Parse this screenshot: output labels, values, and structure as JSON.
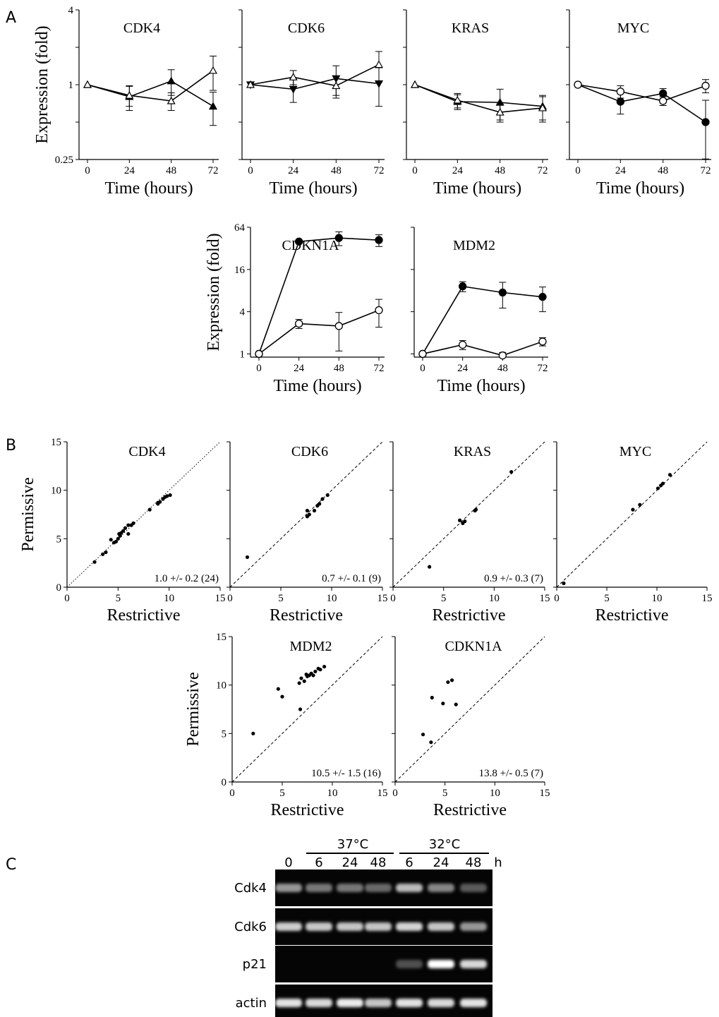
{
  "panel_labels": {
    "a": "A",
    "b": "B",
    "c": "C"
  },
  "legend_note": "",
  "chart_data": [
    {
      "type": "line",
      "panel": "A",
      "title": "CDK4",
      "xlabel": "Time (hours)",
      "ylabel": "Expression (fold)",
      "y_scale": "log2",
      "ylim": [
        0.25,
        4
      ],
      "y_ticklabels": [
        "4",
        "1",
        "0.25"
      ],
      "x": [
        0,
        24,
        48,
        72
      ],
      "series": [
        {
          "marker": "filled-triangle",
          "values": [
            1.0,
            0.8,
            1.07,
            0.67
          ],
          "err": [
            0,
            0.18,
            0.25,
            0.2
          ]
        },
        {
          "marker": "open-triangle",
          "values": [
            1.0,
            0.82,
            0.74,
            1.3
          ],
          "err": [
            0,
            0.15,
            0.12,
            0.4
          ]
        }
      ]
    },
    {
      "type": "line",
      "panel": "A",
      "title": "CDK6",
      "xlabel": "Time (hours)",
      "ylabel": "",
      "y_scale": "log2",
      "ylim": [
        0.25,
        4
      ],
      "y_ticklabels": [],
      "x": [
        0,
        24,
        48,
        72
      ],
      "series": [
        {
          "marker": "filled-inverted-triangle",
          "values": [
            1.0,
            0.92,
            1.12,
            1.02
          ],
          "err": [
            0,
            0.2,
            0.3,
            0.35
          ]
        },
        {
          "marker": "open-triangle",
          "values": [
            1.0,
            1.15,
            0.98,
            1.45
          ],
          "err": [
            0,
            0.15,
            0.2,
            0.4
          ]
        }
      ]
    },
    {
      "type": "line",
      "panel": "A",
      "title": "KRAS",
      "xlabel": "Time (hours)",
      "ylabel": "",
      "y_scale": "log2",
      "ylim": [
        0.25,
        4
      ],
      "y_ticklabels": [],
      "x": [
        0,
        24,
        48,
        72
      ],
      "series": [
        {
          "marker": "filled-triangle",
          "values": [
            1.0,
            0.73,
            0.72,
            0.67
          ],
          "err": [
            0,
            0.1,
            0.2,
            0.15
          ]
        },
        {
          "marker": "open-triangle",
          "values": [
            1.0,
            0.75,
            0.6,
            0.65
          ],
          "err": [
            0,
            0.1,
            0.1,
            0.15
          ]
        }
      ]
    },
    {
      "type": "line",
      "panel": "A",
      "title": "MYC",
      "xlabel": "Time (hours)",
      "ylabel": "",
      "y_scale": "log2",
      "ylim": [
        0.25,
        4
      ],
      "y_ticklabels": [],
      "x": [
        0,
        24,
        48,
        72
      ],
      "series": [
        {
          "marker": "filled-circle",
          "values": [
            1.0,
            0.73,
            0.85,
            0.5
          ],
          "err": [
            0,
            0.15,
            0.08,
            0.25
          ]
        },
        {
          "marker": "open-circle",
          "values": [
            1.0,
            0.88,
            0.74,
            0.98
          ],
          "err": [
            0,
            0.1,
            0.06,
            0.12
          ]
        }
      ]
    },
    {
      "type": "line",
      "panel": "A",
      "title": "CDKN1A",
      "xlabel": "Time (hours)",
      "ylabel": "Expression (fold)",
      "y_scale": "log2",
      "ylim": [
        0.9,
        64
      ],
      "y_ticks": [
        1,
        4,
        16,
        64
      ],
      "y_ticklabels": [
        "1",
        "4",
        "16",
        "64"
      ],
      "x": [
        0,
        24,
        48,
        72
      ],
      "series": [
        {
          "marker": "filled-circle",
          "values": [
            1,
            40,
            45,
            42
          ],
          "err": [
            0,
            0,
            10,
            8
          ]
        },
        {
          "marker": "open-circle",
          "values": [
            1,
            2.7,
            2.5,
            4.2
          ],
          "err": [
            0,
            0.4,
            1.4,
            1.8
          ]
        }
      ]
    },
    {
      "type": "line",
      "panel": "A",
      "title": "MDM2",
      "xlabel": "Time (hours)",
      "ylabel": "",
      "y_scale": "log2",
      "ylim": [
        0.9,
        64
      ],
      "y_ticks": [
        1,
        4,
        16,
        64
      ],
      "y_ticklabels": [],
      "x": [
        0,
        24,
        48,
        72
      ],
      "series": [
        {
          "marker": "filled-circle",
          "values": [
            1,
            9.2,
            7.5,
            6.5
          ],
          "err": [
            0,
            1.5,
            3,
            2.5
          ]
        },
        {
          "marker": "open-circle",
          "values": [
            1,
            1.35,
            0.95,
            1.5
          ],
          "err": [
            0,
            0.2,
            0.1,
            0.2
          ]
        }
      ]
    },
    {
      "type": "scatter",
      "panel": "B",
      "title": "CDK4",
      "xlabel": "Restrictive",
      "ylabel": "Permissive",
      "xlim": [
        0,
        15
      ],
      "ylim": [
        0,
        15
      ],
      "ticks": [
        0,
        5,
        10,
        15
      ],
      "show_y_ticks": true,
      "diag_style": "dotted",
      "annotation": "1.0 +/- 0.2 (24)",
      "points": [
        [
          2.7,
          2.6
        ],
        [
          3.5,
          3.4
        ],
        [
          3.8,
          3.6
        ],
        [
          4.3,
          4.9
        ],
        [
          4.6,
          4.6
        ],
        [
          4.8,
          4.7
        ],
        [
          5.0,
          5.0
        ],
        [
          5.2,
          5.3
        ],
        [
          5.3,
          5.6
        ],
        [
          5.5,
          5.8
        ],
        [
          5.7,
          6.1
        ],
        [
          6.0,
          6.4
        ],
        [
          6.3,
          6.4
        ],
        [
          6.5,
          6.6
        ],
        [
          6.0,
          5.5
        ],
        [
          5.1,
          5.5
        ],
        [
          8.1,
          8.0
        ],
        [
          8.9,
          8.7
        ],
        [
          9.1,
          8.8
        ],
        [
          9.4,
          9.1
        ],
        [
          9.6,
          9.3
        ],
        [
          9.8,
          9.4
        ],
        [
          10.1,
          9.5
        ],
        [
          8.9,
          8.6
        ]
      ]
    },
    {
      "type": "scatter",
      "panel": "B",
      "title": "CDK6",
      "xlabel": "Restrictive",
      "ylabel": "",
      "xlim": [
        0,
        15
      ],
      "ylim": [
        0,
        15
      ],
      "ticks": [
        0,
        5,
        10,
        15
      ],
      "show_y_ticks": false,
      "diag_style": "dashed",
      "annotation": "0.7 +/- 0.1 (9)",
      "points": [
        [
          1.7,
          3.1
        ],
        [
          7.6,
          7.3
        ],
        [
          7.8,
          7.5
        ],
        [
          7.6,
          7.9
        ],
        [
          8.3,
          7.9
        ],
        [
          8.6,
          8.4
        ],
        [
          8.8,
          8.6
        ],
        [
          9.1,
          9.1
        ],
        [
          9.6,
          9.5
        ]
      ]
    },
    {
      "type": "scatter",
      "panel": "B",
      "title": "KRAS",
      "xlabel": "Restrictive",
      "ylabel": "",
      "xlim": [
        0,
        15
      ],
      "ylim": [
        0,
        15
      ],
      "ticks": [
        0,
        5,
        10,
        15
      ],
      "show_y_ticks": false,
      "diag_style": "dashed",
      "annotation": "0.9 +/- 0.3 (7)",
      "points": [
        [
          3.6,
          2.1
        ],
        [
          6.6,
          6.9
        ],
        [
          6.9,
          6.6
        ],
        [
          7.1,
          6.8
        ],
        [
          8.1,
          7.9
        ],
        [
          8.2,
          8.0
        ],
        [
          11.7,
          11.9
        ]
      ]
    },
    {
      "type": "scatter",
      "panel": "B",
      "title": "MYC",
      "xlabel": "Restrictive",
      "ylabel": "",
      "xlim": [
        0,
        15
      ],
      "ylim": [
        0,
        15
      ],
      "ticks": [
        0,
        5,
        10,
        15
      ],
      "show_y_ticks": false,
      "diag_style": "dashed",
      "annotation": "",
      "points": [
        [
          0.7,
          0.4
        ],
        [
          7.6,
          8.0
        ],
        [
          8.3,
          8.5
        ],
        [
          10.1,
          10.2
        ],
        [
          10.4,
          10.5
        ],
        [
          10.6,
          10.7
        ],
        [
          11.3,
          11.6
        ]
      ]
    },
    {
      "type": "scatter",
      "panel": "B",
      "title": "MDM2",
      "xlabel": "Restrictive",
      "ylabel": "Permissive",
      "xlim": [
        0,
        15
      ],
      "ylim": [
        0,
        15
      ],
      "ticks": [
        0,
        5,
        10,
        15
      ],
      "show_y_ticks": true,
      "diag_style": "dashed",
      "annotation": "10.5 +/- 1.5 (16)",
      "points": [
        [
          2.1,
          5.0
        ],
        [
          4.6,
          9.6
        ],
        [
          5.0,
          8.8
        ],
        [
          6.8,
          7.5
        ],
        [
          6.9,
          10.7
        ],
        [
          6.7,
          10.2
        ],
        [
          7.2,
          10.4
        ],
        [
          7.5,
          10.9
        ],
        [
          7.7,
          11.0
        ],
        [
          7.9,
          11.2
        ],
        [
          8.1,
          11.0
        ],
        [
          8.3,
          11.4
        ],
        [
          8.6,
          11.7
        ],
        [
          8.8,
          11.6
        ],
        [
          9.2,
          11.9
        ],
        [
          7.4,
          11.1
        ]
      ]
    },
    {
      "type": "scatter",
      "panel": "B",
      "title": "CDKN1A",
      "xlabel": "Restrictive",
      "ylabel": "",
      "xlim": [
        0,
        15
      ],
      "ylim": [
        0,
        15
      ],
      "ticks": [
        0,
        5,
        10,
        15
      ],
      "show_y_ticks": false,
      "diag_style": "dashed",
      "annotation": "13.8 +/- 0.5 (7)",
      "points": [
        [
          2.8,
          4.9
        ],
        [
          3.6,
          4.1
        ],
        [
          3.7,
          8.7
        ],
        [
          4.8,
          8.1
        ],
        [
          5.3,
          10.3
        ],
        [
          5.7,
          10.5
        ],
        [
          6.1,
          8.0
        ]
      ]
    }
  ],
  "blot": {
    "group_37": "37°C",
    "group_32": "32°C",
    "lanes": [
      "0",
      "6",
      "24",
      "48",
      "6",
      "24",
      "48"
    ],
    "unit": "h",
    "rows": [
      {
        "label": "Cdk4",
        "intensity": [
          0.55,
          0.45,
          0.45,
          0.4,
          0.65,
          0.5,
          0.35
        ]
      },
      {
        "label": "Cdk6",
        "intensity": [
          0.75,
          0.72,
          0.7,
          0.7,
          0.78,
          0.7,
          0.55
        ]
      },
      {
        "label": "p21",
        "intensity": [
          0,
          0,
          0,
          0,
          0.3,
          1.0,
          0.8
        ]
      },
      {
        "label": "actin",
        "intensity": [
          0.85,
          0.8,
          0.9,
          0.7,
          0.85,
          0.8,
          0.85
        ]
      }
    ]
  }
}
